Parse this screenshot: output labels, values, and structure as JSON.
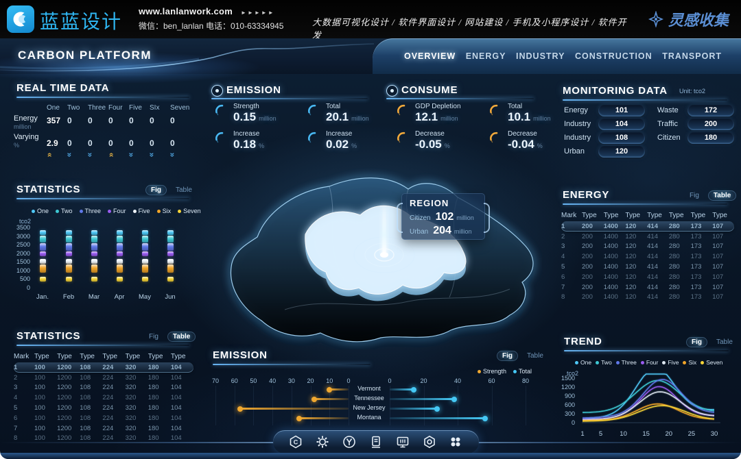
{
  "brand": {
    "logo_text": "蓝蓝设计",
    "website": "www.lanlanwork.com",
    "website_arrows": "►►►►►",
    "contact": "微信：ben_lanlan    电话：010-63334945",
    "services": "大数据可视化设计  /  软件界面设计  /  网站建设  /  手机及小程序设计  /  软件开发",
    "collect_label": "灵感收集",
    "accent_blue": "#2fb6f2"
  },
  "nav": {
    "title": "CARBON PLATFORM",
    "tabs": [
      {
        "label": "OVERVIEW",
        "active": true
      },
      {
        "label": "ENERGY",
        "active": false
      },
      {
        "label": "INDUSTRY",
        "active": false
      },
      {
        "label": "CONSTRUCTION",
        "active": false
      },
      {
        "label": "TRANSPORT",
        "active": false
      }
    ]
  },
  "real_time": {
    "title": "REAL TIME DATA",
    "columns": [
      "One",
      "Two",
      "Three",
      "Four",
      "Five",
      "SIx",
      "Seven"
    ],
    "rows": [
      {
        "label": "Energy",
        "unit": "million",
        "values": [
          "357",
          "0",
          "0",
          "0",
          "0",
          "0",
          "0"
        ]
      },
      {
        "label": "Varying",
        "unit": "%",
        "values": [
          "2.9",
          "0",
          "0",
          "0",
          "0",
          "0",
          "0"
        ]
      }
    ],
    "trends": [
      "up",
      "down",
      "down",
      "up",
      "down",
      "down",
      "down"
    ]
  },
  "statistics_fig": {
    "title": "STATISTICS",
    "toggle": {
      "fig": "Fig",
      "table": "Table",
      "active": "fig"
    }
  },
  "statistics_table": {
    "title": "STATISTICS",
    "toggle": {
      "fig": "Fig",
      "table": "Table",
      "active": "table"
    },
    "columns": [
      "Mark",
      "Type",
      "Type",
      "Type",
      "Type",
      "Type",
      "Type",
      "Type"
    ],
    "rows": [
      [
        "1",
        "100",
        "1200",
        "108",
        "224",
        "320",
        "180",
        "104"
      ],
      [
        "2",
        "100",
        "1200",
        "108",
        "224",
        "320",
        "180",
        "104"
      ],
      [
        "3",
        "100",
        "1200",
        "108",
        "224",
        "320",
        "180",
        "104"
      ],
      [
        "4",
        "100",
        "1200",
        "108",
        "224",
        "320",
        "180",
        "104"
      ],
      [
        "5",
        "100",
        "1200",
        "108",
        "224",
        "320",
        "180",
        "104"
      ],
      [
        "6",
        "100",
        "1200",
        "108",
        "224",
        "320",
        "180",
        "104"
      ],
      [
        "7",
        "100",
        "1200",
        "108",
        "224",
        "320",
        "180",
        "104"
      ],
      [
        "8",
        "100",
        "1200",
        "108",
        "224",
        "320",
        "180",
        "104"
      ]
    ],
    "highlight_row": 0
  },
  "emission_stats": {
    "title": "EMISSION",
    "accent": "#49b8f2",
    "items": [
      {
        "label": "Strength",
        "value": "0.15",
        "unit": "million"
      },
      {
        "label": "Total",
        "value": "20.1",
        "unit": "million"
      },
      {
        "label": "Increase",
        "value": "0.18",
        "unit": "%"
      },
      {
        "label": "Increase",
        "value": "0.02",
        "unit": "%"
      }
    ]
  },
  "consume_stats": {
    "title": "CONSUME",
    "accent": "#f2a93b",
    "items": [
      {
        "label": "GDP Depletion",
        "value": "12.1",
        "unit": "million"
      },
      {
        "label": "Total",
        "value": "10.1",
        "unit": "million"
      },
      {
        "label": "Decrease",
        "value": "-0.05",
        "unit": "%"
      },
      {
        "label": "Decrease",
        "value": "-0.04",
        "unit": "%"
      }
    ]
  },
  "map": {
    "tooltip": {
      "title": "REGION",
      "rows": [
        {
          "label": "Citizen",
          "value": "102",
          "unit": "million"
        },
        {
          "label": "Urban",
          "value": "204",
          "unit": "million"
        }
      ]
    }
  },
  "monitoring": {
    "title": "MONITORING DATA",
    "unit": "Unit: tco2",
    "left": [
      {
        "label": "Energy",
        "value": "101"
      },
      {
        "label": "Industry",
        "value": "104"
      },
      {
        "label": "Industry",
        "value": "108"
      },
      {
        "label": "Urban",
        "value": "120"
      }
    ],
    "right": [
      {
        "label": "Waste",
        "value": "172"
      },
      {
        "label": "Traffic",
        "value": "200"
      },
      {
        "label": "Citizen",
        "value": "180"
      }
    ]
  },
  "energy_table": {
    "title": "ENERGY",
    "toggle": {
      "fig": "Fig",
      "table": "Table",
      "active": "table"
    },
    "columns": [
      "Mark",
      "Type",
      "Type",
      "Type",
      "Type",
      "Type",
      "Type",
      "Type"
    ],
    "rows": [
      [
        "1",
        "200",
        "1400",
        "120",
        "414",
        "280",
        "173",
        "107"
      ],
      [
        "2",
        "200",
        "1400",
        "120",
        "414",
        "280",
        "173",
        "107"
      ],
      [
        "3",
        "200",
        "1400",
        "120",
        "414",
        "280",
        "173",
        "107"
      ],
      [
        "4",
        "200",
        "1400",
        "120",
        "414",
        "280",
        "173",
        "107"
      ],
      [
        "5",
        "200",
        "1400",
        "120",
        "414",
        "280",
        "173",
        "107"
      ],
      [
        "6",
        "200",
        "1400",
        "120",
        "414",
        "280",
        "173",
        "107"
      ],
      [
        "7",
        "200",
        "1400",
        "120",
        "414",
        "280",
        "173",
        "107"
      ],
      [
        "8",
        "200",
        "1400",
        "120",
        "414",
        "280",
        "173",
        "107"
      ]
    ],
    "highlight_row": 0
  },
  "emission_panel": {
    "title": "EMISSION",
    "toggle": {
      "fig": "Fig",
      "table": "Table",
      "active": "fig"
    }
  },
  "trend_panel": {
    "title": "TREND",
    "toggle": {
      "fig": "Fig",
      "table": "Table",
      "active": "fig"
    }
  },
  "chart_data": [
    {
      "id": "statistics",
      "type": "stacked-segments",
      "title": "STATISTICS",
      "ylabel": "tco2",
      "ylim": [
        0,
        3500
      ],
      "yticks": [
        0,
        500,
        1000,
        1500,
        2000,
        2500,
        3000,
        3500
      ],
      "categories": [
        "Jan.",
        "Feb",
        "Mar",
        "Apr",
        "May",
        "Jun"
      ],
      "note": "each month shows identical stacked value bands",
      "series": [
        {
          "name": "One",
          "color": "#4fc8f7",
          "band": [
            3080,
            3350
          ]
        },
        {
          "name": "Two",
          "color": "#3ec9d4",
          "band": [
            2640,
            3040
          ]
        },
        {
          "name": "Three",
          "color": "#5f78e8",
          "band": [
            2160,
            2580
          ]
        },
        {
          "name": "Four",
          "color": "#9a5cf0",
          "band": [
            1840,
            2120
          ]
        },
        {
          "name": "Five",
          "color": "#eef4fa",
          "band": [
            1380,
            1660
          ]
        },
        {
          "name": "Six",
          "color": "#f0a428",
          "band": [
            860,
            1340
          ]
        },
        {
          "name": "Seven",
          "color": "#f7d437",
          "band": [
            340,
            640
          ]
        }
      ]
    },
    {
      "id": "emission",
      "type": "bar",
      "orientation": "diverging-horizontal",
      "title": "EMISSION",
      "categories": [
        "Vermont",
        "Tennessee",
        "New Jersey",
        "Montana"
      ],
      "series": [
        {
          "name": "Strength",
          "color": "#f0a830",
          "values": [
            10,
            18,
            57,
            26
          ]
        },
        {
          "name": "Total",
          "color": "#45c8f5",
          "values": [
            14,
            38,
            28,
            56
          ]
        }
      ],
      "left_axis": {
        "ticks": [
          70,
          60,
          50,
          40,
          30,
          20,
          10,
          0
        ],
        "max": 70
      },
      "right_axis": {
        "ticks": [
          0,
          20,
          40,
          60,
          80
        ],
        "max": 80
      }
    },
    {
      "id": "trend",
      "type": "line",
      "title": "TREND",
      "ylabel": "tco2",
      "ylim": [
        0,
        1800
      ],
      "yticks": [
        0,
        300,
        600,
        900,
        1200,
        1500
      ],
      "xticks": [
        1,
        5,
        10,
        15,
        20,
        25,
        30
      ],
      "xlim": [
        1,
        30
      ],
      "note": "bell-shaped curves peaking near x=17-18; params approximate pixel-read values",
      "series": [
        {
          "name": "One",
          "color": "#4fc8f7",
          "base_start": 120,
          "base_end": 430,
          "peak": 1560,
          "center": 17,
          "sigma": 4.2
        },
        {
          "name": "Two",
          "color": "#3ec9d4",
          "base_start": 340,
          "base_end": 360,
          "peak": 1070,
          "center": 17.5,
          "sigma": 4.8
        },
        {
          "name": "Three",
          "color": "#5f78e8",
          "base_start": 160,
          "base_end": 320,
          "peak": 1200,
          "center": 18.5,
          "sigma": 4.2
        },
        {
          "name": "Four",
          "color": "#9a5cf0",
          "base_start": 110,
          "base_end": 240,
          "peak": 1030,
          "center": 17.8,
          "sigma": 4.0
        },
        {
          "name": "Five",
          "color": "#dde7f0",
          "base_start": 90,
          "base_end": 210,
          "peak": 880,
          "center": 18,
          "sigma": 4.5
        },
        {
          "name": "Six",
          "color": "#f0a428",
          "base_start": 70,
          "base_end": 110,
          "peak": 540,
          "center": 17.5,
          "sigma": 4.5
        },
        {
          "name": "Seven",
          "color": "#f7d437",
          "base_start": 50,
          "base_end": 90,
          "peak": 500,
          "center": 18.5,
          "sigma": 5.0
        }
      ]
    }
  ],
  "dock": {
    "icons": [
      "home-badge-icon",
      "gear-icon",
      "y-badge-icon",
      "charging-station-icon",
      "monitor-icon",
      "nut-icon",
      "apps-grid-icon"
    ]
  }
}
